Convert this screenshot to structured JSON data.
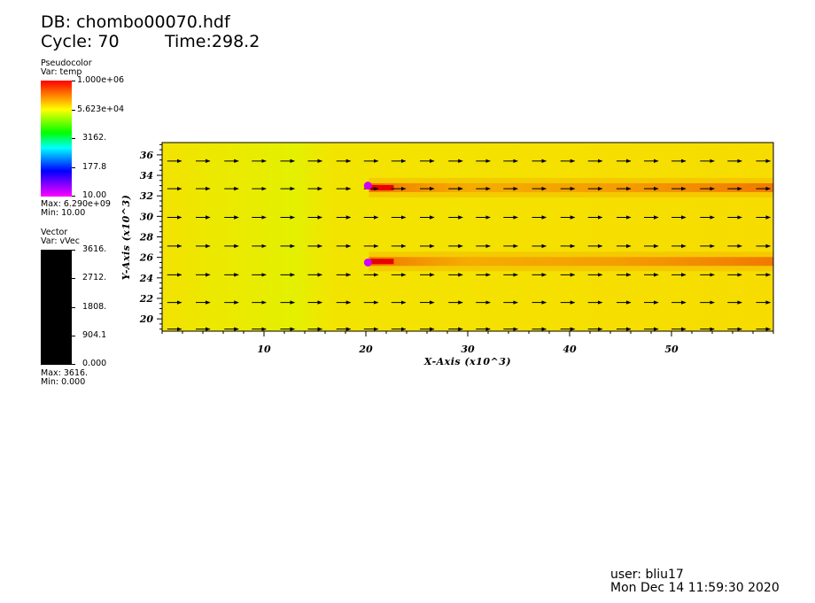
{
  "header": {
    "db_label": "DB: chombo00070.hdf",
    "cycle_label": "Cycle: 70",
    "time_label": "Time:298.2"
  },
  "legend_pseudocolor": {
    "title": "Pseudocolor",
    "var": "Var: temp",
    "ticks": [
      "1.000e+06",
      "5.623e+04",
      "3162.",
      "177.8",
      "10.00"
    ],
    "max": "Max:  6.290e+09",
    "min": "Min:  10.00",
    "colors": [
      "#ff0000",
      "#ffff00",
      "#00ff00",
      "#00ffff",
      "#0000ff",
      "#ff00ff"
    ]
  },
  "legend_vector": {
    "title": "Vector",
    "var": "Var: vVec",
    "ticks": [
      "3616.",
      "2712.",
      "1808.",
      "904.1",
      "0.000"
    ],
    "max": "Max:  3616.",
    "min": "Min:  0.000",
    "color": "#000000"
  },
  "footer": {
    "user": "user: bliu17",
    "date": "Mon Dec 14 11:59:30 2020"
  },
  "chart_data": {
    "type": "heatmap",
    "variable": "temp",
    "scale": "log",
    "xlabel": "X-Axis (x10^3)",
    "ylabel": "Y-Axis (x10^3)",
    "xlim": [
      0,
      60
    ],
    "ylim": [
      18.8,
      37.2
    ],
    "x_ticks": [
      10,
      20,
      30,
      40,
      50
    ],
    "y_ticks": [
      20,
      22,
      24,
      26,
      28,
      30,
      32,
      34,
      36
    ],
    "background_color": "#f5e800",
    "hot_bands": [
      {
        "y": 32.8,
        "x_start": 20.3,
        "x_end": 60,
        "color": "#f07800"
      },
      {
        "y": 25.6,
        "x_start": 20.3,
        "x_end": 60,
        "color": "#f07800"
      }
    ],
    "sources": [
      {
        "x": 20.2,
        "y": 33.0,
        "color": "#cc00ff"
      },
      {
        "x": 20.2,
        "y": 25.5,
        "color": "#cc00ff"
      }
    ],
    "vector_rows_y": [
      19.0,
      21.6,
      24.3,
      27.1,
      29.9,
      32.7,
      35.4
    ],
    "vector_cols_x": [
      1.2,
      4.0,
      6.8,
      9.5,
      12.3,
      15.0,
      17.8,
      20.5,
      23.2,
      26.0,
      28.8,
      31.5,
      34.2,
      37.0,
      39.8,
      42.5,
      45.3,
      48.0,
      50.7,
      53.5,
      56.2,
      59.0
    ]
  }
}
